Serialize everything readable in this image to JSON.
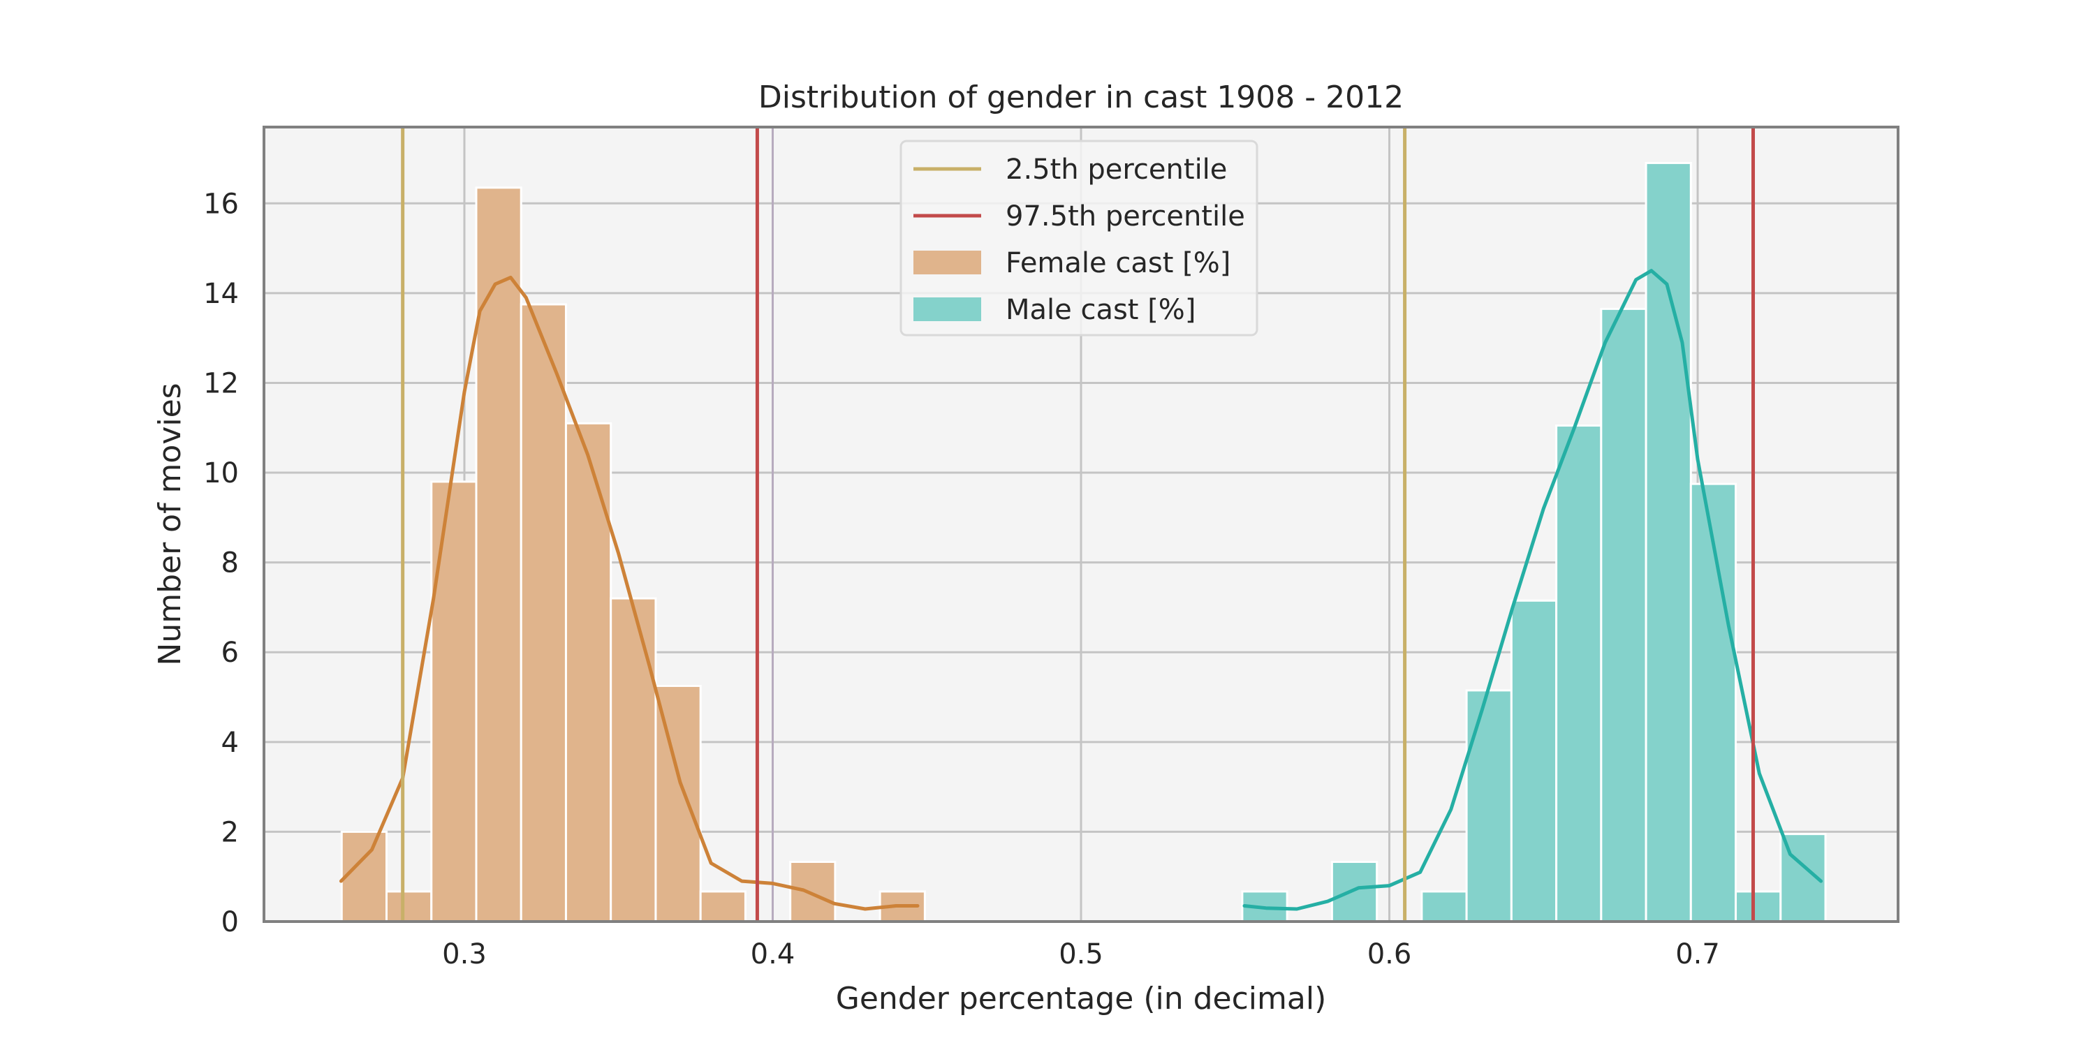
{
  "chart_data": {
    "type": "bar",
    "title": "Distribution of gender in cast 1908 - 2012",
    "xlabel": "Gender percentage (in decimal)",
    "ylabel": "Number of movies",
    "xlim": [
      0.235,
      0.765
    ],
    "ylim": [
      0,
      17.7
    ],
    "xticks": [
      0.3,
      0.4,
      0.5,
      0.6,
      0.7
    ],
    "xtick_labels": [
      "0.3",
      "0.4",
      "0.5",
      "0.6",
      "0.7"
    ],
    "yticks": [
      0,
      2,
      4,
      6,
      8,
      10,
      12,
      14,
      16
    ],
    "ytick_labels": [
      "0",
      "2",
      "4",
      "6",
      "8",
      "10",
      "12",
      "14",
      "16"
    ],
    "grid": true,
    "legend_position": "top-center",
    "series": [
      {
        "name": "Female cast [%]",
        "kind": "histogram",
        "color": "#e0b48c",
        "bin_width": 0.01455,
        "bin_starts": [
          0.2602,
          0.27475,
          0.2893,
          0.30385,
          0.3184,
          0.33295,
          0.3475,
          0.36205,
          0.3766,
          0.39115,
          0.4057,
          0.42025,
          0.4348
        ],
        "counts": [
          2,
          0.67,
          9.8,
          16.35,
          13.75,
          11.1,
          7.2,
          5.25,
          0.67,
          0,
          1.33,
          0,
          0.67
        ]
      },
      {
        "name": "Male cast [%]",
        "kind": "histogram",
        "color": "#84d2cb",
        "bin_width": 0.01455,
        "bin_starts": [
          0.5523,
          0.56685,
          0.5814,
          0.59595,
          0.6105,
          0.62505,
          0.6396,
          0.65415,
          0.6687,
          0.68325,
          0.6978,
          0.71235,
          0.7269
        ],
        "counts": [
          0.67,
          0,
          1.33,
          0,
          0.67,
          5.15,
          7.15,
          11.05,
          13.65,
          16.9,
          9.75,
          0.67,
          1.95
        ]
      },
      {
        "name": "Female KDE",
        "kind": "line",
        "color": "#cd8238",
        "x": [
          0.26,
          0.27,
          0.28,
          0.29,
          0.3,
          0.305,
          0.31,
          0.315,
          0.32,
          0.33,
          0.34,
          0.35,
          0.36,
          0.37,
          0.38,
          0.39,
          0.4,
          0.41,
          0.42,
          0.43,
          0.44,
          0.447
        ],
        "y": [
          0.9,
          1.6,
          3.2,
          7.2,
          11.8,
          13.6,
          14.2,
          14.35,
          13.9,
          12.2,
          10.4,
          8.2,
          5.7,
          3.1,
          1.3,
          0.9,
          0.85,
          0.7,
          0.4,
          0.28,
          0.35,
          0.35
        ]
      },
      {
        "name": "Male KDE",
        "kind": "line",
        "color": "#25afa4",
        "x": [
          0.553,
          0.56,
          0.57,
          0.58,
          0.59,
          0.6,
          0.61,
          0.62,
          0.63,
          0.64,
          0.65,
          0.66,
          0.67,
          0.68,
          0.685,
          0.69,
          0.695,
          0.7,
          0.71,
          0.72,
          0.73,
          0.74
        ],
        "y": [
          0.35,
          0.3,
          0.28,
          0.45,
          0.75,
          0.8,
          1.1,
          2.5,
          4.7,
          7.0,
          9.2,
          11.0,
          12.9,
          14.3,
          14.5,
          14.2,
          12.9,
          10.3,
          6.6,
          3.3,
          1.5,
          0.9
        ]
      }
    ],
    "reference_lines": [
      {
        "name": "2.5th percentile",
        "color": "#c8b068",
        "x": [
          0.28,
          0.605
        ]
      },
      {
        "name": "97.5th percentile",
        "color": "#c24a4a",
        "x": [
          0.395,
          0.718
        ]
      }
    ],
    "extra_lines": [
      {
        "color": "#b7abbe",
        "x": 0.4
      }
    ],
    "legend": [
      {
        "label": "2.5th percentile",
        "kind": "line",
        "color": "#c8b068"
      },
      {
        "label": "97.5th percentile",
        "kind": "line",
        "color": "#c24a4a"
      },
      {
        "label": "Female cast [%]",
        "kind": "patch",
        "color": "#e0b48c"
      },
      {
        "label": "Male cast [%]",
        "kind": "patch",
        "color": "#84d2cb"
      }
    ]
  },
  "colors": {
    "plot_background": "#f4f4f4",
    "grid": "#c4c4c4",
    "frame": "#808080",
    "bar_edge": "#ffffff"
  }
}
